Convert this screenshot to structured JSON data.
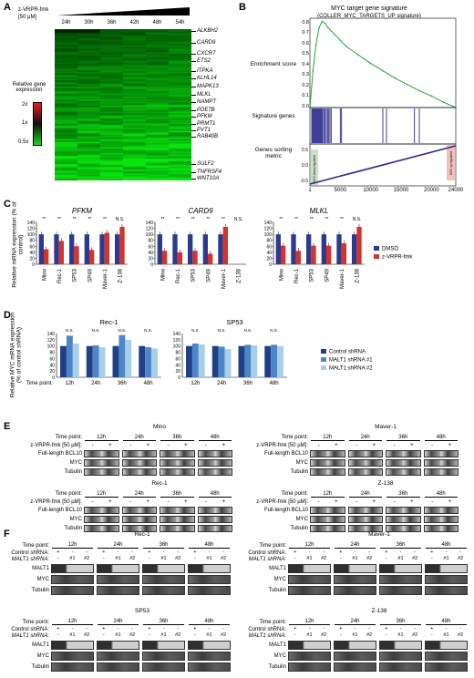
{
  "panelA": {
    "letter": "A",
    "treatment": "z-VRPR-fmk",
    "dose": "[50 µM]",
    "timepoints": [
      "24h",
      "30h",
      "36h",
      "42h",
      "48h",
      "54h"
    ],
    "legend_title": "Relative gene expression",
    "legend_ticks": [
      "2x",
      "1x",
      "0.5x"
    ],
    "genes": [
      "ALKBH2",
      "CARD9",
      "CXCR7",
      "ETS2",
      "ITPKA",
      "KLHL14",
      "MAPK13",
      "MLKL",
      "NAMPT",
      "PDE7B",
      "PFKM",
      "PRMT1",
      "PVT1",
      "RAB40B",
      "SULF2",
      "TNFRSF4",
      "WNT10A"
    ],
    "colors": {
      "high": "#e8201c",
      "mid": "#111111",
      "low": "#1fd41f"
    }
  },
  "panelB": {
    "letter": "B",
    "title": "MYC target gene signature",
    "subtitle": "(COLLER_MYC_TARGETS_UP signature)",
    "ylabel_enrichment": "Enrichment score",
    "ylabel_genes": "Signature genes",
    "ylabel_metric": "Genes sorting metric",
    "es_ticks": [
      "0.8",
      "0.7",
      "0.6",
      "0.5",
      "0.4",
      "0.3",
      "0.2",
      "0.1",
      "0.0"
    ],
    "metric_ticks": [
      "0.5",
      "0.0",
      "-0.5"
    ],
    "x_ticks": [
      "1",
      "5000",
      "10000",
      "15000",
      "20000",
      "24000"
    ],
    "left_bar_text": "MYC down-regulated",
    "right_bar_text": "MYC up-regulated",
    "chart_data": {
      "type": "line",
      "x": [
        1,
        500,
        1000,
        1500,
        2000,
        2500,
        3000,
        4000,
        5000,
        6000,
        8000,
        10000,
        12000,
        14000,
        16000,
        18000,
        20000,
        22000,
        24000
      ],
      "y": [
        0.0,
        0.35,
        0.6,
        0.76,
        0.82,
        0.8,
        0.76,
        0.7,
        0.64,
        0.58,
        0.5,
        0.42,
        0.35,
        0.28,
        0.22,
        0.16,
        0.11,
        0.05,
        0.0
      ],
      "xlim": [
        0,
        24000
      ],
      "ylim": [
        0,
        0.85
      ],
      "hits": [
        300,
        450,
        600,
        750,
        900,
        1050,
        1200,
        1350,
        1500,
        1650,
        1800,
        1950,
        2100,
        2300,
        2500,
        2700,
        2900,
        3100,
        3300,
        3500,
        5000,
        5200,
        12000,
        12600,
        17200,
        18000
      ]
    },
    "colors": {
      "line": "#2e9e3e",
      "hits": "#2b2a8c",
      "down": "#c9e3c4",
      "up": "#f3c1bb"
    }
  },
  "panelC": {
    "letter": "C",
    "ylabel": "Relative mRNA expression (% of control)",
    "yticks": [
      "0",
      "20",
      "40",
      "60",
      "80",
      "100",
      "120",
      "140"
    ],
    "cells": [
      "Mino",
      "Rec-1",
      "SP53",
      "SP49",
      "Maver-1",
      "Z-138"
    ],
    "legend": [
      "DMSO",
      "z-VRPR-fmk"
    ],
    "sig": [
      "**",
      "**",
      "**",
      "**",
      "**",
      "N.S."
    ],
    "colors": {
      "dmso": "#2b3a8c",
      "zvrpr": "#d6322c"
    },
    "chart_data": [
      {
        "type": "bar",
        "title": "PFKM",
        "categories": [
          "Mino",
          "Rec-1",
          "SP53",
          "SP49",
          "Maver-1",
          "Z-138"
        ],
        "series": [
          {
            "name": "DMSO",
            "values": [
              100,
              100,
              100,
              100,
              100,
              100
            ]
          },
          {
            "name": "z-VRPR-fmk",
            "values": [
              50,
              78,
              60,
              48,
              105,
              125
            ]
          }
        ],
        "ylim": [
          0,
          140
        ]
      },
      {
        "type": "bar",
        "title": "CARD9",
        "categories": [
          "Mino",
          "Rec-1",
          "SP53",
          "SP49",
          "Maver-1",
          "Z-138"
        ],
        "series": [
          {
            "name": "DMSO",
            "values": [
              100,
              100,
              100,
              100,
              100,
              0
            ]
          },
          {
            "name": "z-VRPR-fmk",
            "values": [
              45,
              40,
              45,
              35,
              125,
              0
            ]
          }
        ],
        "ylim": [
          0,
          140
        ]
      },
      {
        "type": "bar",
        "title": "MLKL",
        "categories": [
          "Mino",
          "Rec-1",
          "SP53",
          "SP49",
          "Maver-1",
          "Z-138"
        ],
        "series": [
          {
            "name": "DMSO",
            "values": [
              100,
              100,
              100,
              100,
              100,
              100
            ]
          },
          {
            "name": "z-VRPR-fmk",
            "values": [
              62,
              45,
              62,
              62,
              70,
              125
            ]
          }
        ],
        "ylim": [
          0,
          140
        ]
      }
    ]
  },
  "panelD": {
    "letter": "D",
    "ylabel": "Relative MYC mRNA expression (% of control shRNA)",
    "yticks": [
      "0",
      "20",
      "40",
      "60",
      "80",
      "100",
      "120",
      "140"
    ],
    "timepoint_label": "Time point:",
    "timepoints": [
      "12h",
      "24h",
      "36h",
      "48h"
    ],
    "legend": [
      "Control shRNA",
      "MALT1 shRNA #1",
      "MALT1 shRNA #2"
    ],
    "sig": "N.S.",
    "colors": {
      "ctrl": "#1f3f86",
      "sh1": "#4d86c6",
      "sh2": "#a8cfe8"
    },
    "chart_data": [
      {
        "type": "bar",
        "title": "Rec-1",
        "categories": [
          "12h",
          "24h",
          "36h",
          "48h"
        ],
        "series": [
          {
            "name": "Control shRNA",
            "values": [
              100,
              100,
              100,
              100
            ]
          },
          {
            "name": "MALT1 shRNA #1",
            "values": [
              133,
              102,
              135,
              96
            ]
          },
          {
            "name": "MALT1 shRNA #2",
            "values": [
              108,
              96,
              120,
              92
            ]
          }
        ],
        "ylim": [
          0,
          140
        ]
      },
      {
        "type": "bar",
        "title": "SP53",
        "categories": [
          "12h",
          "24h",
          "36h",
          "48h"
        ],
        "series": [
          {
            "name": "Control shRNA",
            "values": [
              100,
              100,
              100,
              100
            ]
          },
          {
            "name": "MALT1 shRNA #1",
            "values": [
              108,
              98,
              104,
              104
            ]
          },
          {
            "name": "MALT1 shRNA #2",
            "values": [
              105,
              90,
              102,
              100
            ]
          }
        ],
        "ylim": [
          0,
          140
        ]
      }
    ]
  },
  "panelE": {
    "letter": "E",
    "timepoint_label": "Time point:",
    "treatment_label": "z-VRPR-fmk [50 µM]:",
    "timepoints": [
      "12h",
      "24h",
      "36h",
      "48h"
    ],
    "signs": [
      "-",
      "+"
    ],
    "rows": [
      "Full-length BCL10",
      "MYC",
      "Tubulin"
    ],
    "cells": [
      "Mino",
      "Maver-1",
      "Rec-1",
      "Z-138"
    ]
  },
  "panelF": {
    "letter": "F",
    "timepoint_label": "Time point:",
    "control_label": "Control shRNA:",
    "malt_label": "MALT1 shRNA:",
    "timepoints": [
      "12h",
      "24h",
      "36h",
      "48h"
    ],
    "ctrl_signs": [
      "+",
      "-",
      "-"
    ],
    "malt_signs": [
      "-",
      "#1",
      "#2"
    ],
    "rows": [
      "MALT1",
      "MYC",
      "Tubulin"
    ],
    "cells": [
      "Rec-1",
      "Maver-1",
      "SP53",
      "Z-138"
    ]
  }
}
